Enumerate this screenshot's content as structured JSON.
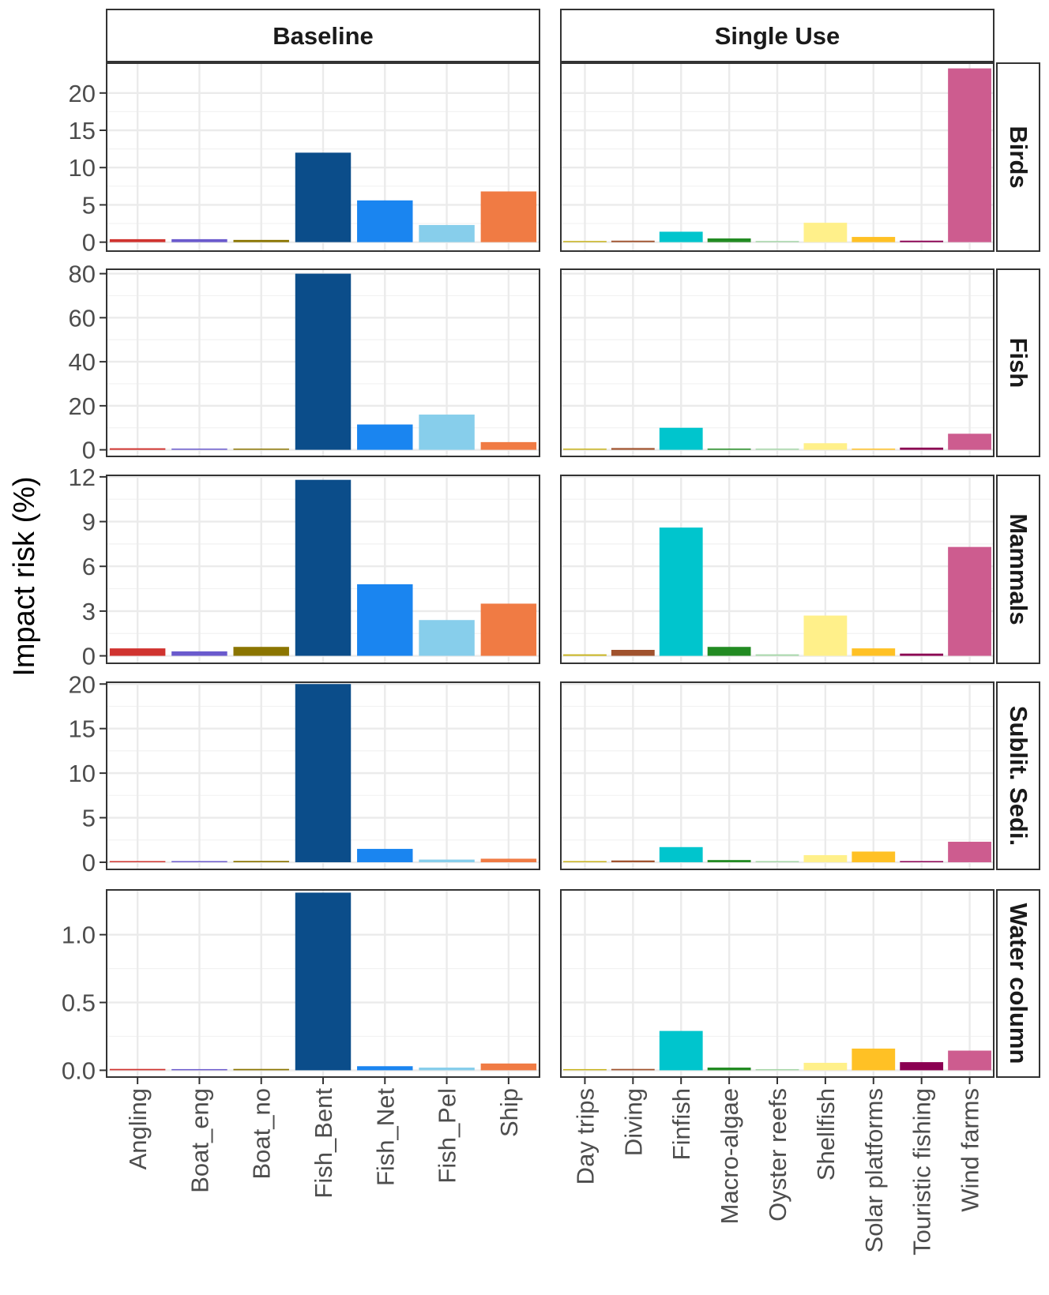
{
  "chart_data": {
    "type": "bar",
    "ylabel": "Impact risk (%)",
    "facets": {
      "columns": [
        {
          "key": "baseline",
          "label": "Baseline",
          "categories": [
            "Angling",
            "Boat_eng",
            "Boat_no",
            "Fish_Bent",
            "Fish_Net",
            "Fish_Pel",
            "Ship"
          ],
          "colors": [
            "#d0332f",
            "#6a5acd",
            "#8b7500",
            "#0b4d8a",
            "#1a85f0",
            "#87ceeb",
            "#f07b44"
          ]
        },
        {
          "key": "single_use",
          "label": "Single Use",
          "categories": [
            "Day trips",
            "Diving",
            "Finfish",
            "Macro-algae",
            "Oyster reefs",
            "Shellfish",
            "Solar platforms",
            "Touristic fishing",
            "Wind farms"
          ],
          "colors": [
            "#c7b21a",
            "#a0522d",
            "#00c5cd",
            "#228b22",
            "#a5d6a7",
            "#fff08a",
            "#ffc125",
            "#8b0052",
            "#cd5c8f"
          ]
        }
      ],
      "rows": [
        {
          "label": "Birds",
          "ylim": [
            -1.2,
            24
          ],
          "ticks": [
            "0",
            "5",
            "10",
            "15",
            "20"
          ],
          "baseline": [
            0.4,
            0.4,
            0.3,
            12.0,
            5.6,
            2.3,
            6.8
          ],
          "single_use": [
            0.1,
            0.2,
            1.4,
            0.5,
            0.05,
            2.6,
            0.7,
            0.2,
            23.3
          ]
        },
        {
          "label": "Fish",
          "ylim": [
            -3.0,
            82
          ],
          "ticks": [
            "0",
            "20",
            "40",
            "60",
            "80"
          ],
          "baseline": [
            0.7,
            0.3,
            0.5,
            80.0,
            11.5,
            16.0,
            3.5
          ],
          "single_use": [
            0.2,
            0.8,
            10.0,
            0.5,
            0.1,
            3.0,
            0.5,
            1.0,
            7.3
          ]
        },
        {
          "label": "Mammals",
          "ylim": [
            -0.5,
            12.1
          ],
          "ticks": [
            "0",
            "3",
            "6",
            "9",
            "12"
          ],
          "baseline": [
            0.5,
            0.3,
            0.6,
            11.8,
            4.8,
            2.4,
            3.5
          ],
          "single_use": [
            0.1,
            0.4,
            8.6,
            0.6,
            0.1,
            2.7,
            0.5,
            0.15,
            7.3
          ]
        },
        {
          "label": "Sublit. Sedi.",
          "ylim": [
            -0.8,
            20.2
          ],
          "ticks": [
            "0",
            "5",
            "10",
            "15",
            "20"
          ],
          "baseline": [
            0.1,
            0.1,
            0.15,
            20.0,
            1.5,
            0.3,
            0.4
          ],
          "single_use": [
            0.05,
            0.2,
            1.7,
            0.25,
            0.1,
            0.8,
            1.2,
            0.1,
            2.3
          ]
        },
        {
          "label": "Water column",
          "ylim": [
            -0.05,
            1.33
          ],
          "ticks": [
            "0.0",
            "0.5",
            "1.0"
          ],
          "baseline": [
            0.01,
            0.005,
            0.01,
            1.31,
            0.03,
            0.02,
            0.05
          ],
          "single_use": [
            0.002,
            0.01,
            0.29,
            0.02,
            0.002,
            0.055,
            0.16,
            0.06,
            0.145
          ]
        }
      ]
    }
  }
}
